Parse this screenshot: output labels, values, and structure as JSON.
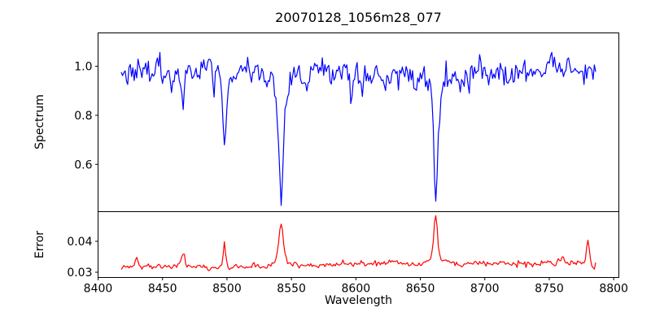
{
  "chart_data": {
    "type": "line",
    "title": "20070128_1056m28_077",
    "xlabel": "Wavelength",
    "background": "#ffffff",
    "grid": false,
    "legend": "none",
    "xlim": [
      8400,
      8804
    ],
    "x_ticks": [
      8400,
      8450,
      8500,
      8550,
      8600,
      8650,
      8700,
      8750,
      8800
    ],
    "x_start": 8418,
    "x_end": 8786,
    "x_step": 1,
    "noise_seed": 20070128,
    "panels": [
      {
        "name": "spectrum",
        "ylabel": "Spectrum",
        "color": "#0000ff",
        "ylim": [
          0.407,
          1.136
        ],
        "y_ticks": [
          0.6,
          0.8,
          1.0
        ],
        "y_tick_labels": [
          "0.6",
          "0.8",
          "1.0"
        ],
        "baseline_start": 0.978,
        "baseline_end": 0.97,
        "noise_sigma": 0.024,
        "features": [
          {
            "x": 8498,
            "amp": -0.24,
            "width": 1.2
          },
          {
            "x": 8498,
            "amp": -0.1,
            "width": 3.2
          },
          {
            "x": 8542,
            "amp": -0.38,
            "width": 1.7
          },
          {
            "x": 8542,
            "amp": -0.13,
            "width": 5.0
          },
          {
            "x": 8662,
            "amp": -0.37,
            "width": 1.5
          },
          {
            "x": 8662,
            "amp": -0.11,
            "width": 4.2
          },
          {
            "x": 8450,
            "amp": -0.05,
            "width": 0.8
          },
          {
            "x": 8466,
            "amp": -0.1,
            "width": 0.9
          },
          {
            "x": 8490,
            "amp": -0.07,
            "width": 0.8
          },
          {
            "x": 8530,
            "amp": -0.06,
            "width": 0.9
          },
          {
            "x": 8596,
            "amp": -0.09,
            "width": 0.8
          },
          {
            "x": 8688,
            "amp": -0.05,
            "width": 0.8
          }
        ],
        "key_points": [
          {
            "x": 8498,
            "y": 0.63
          },
          {
            "x": 8542,
            "y": 0.46
          },
          {
            "x": 8662,
            "y": 0.49
          }
        ]
      },
      {
        "name": "error",
        "ylabel": "Error",
        "color": "#ff0000",
        "ylim": [
          0.0283,
          0.0496
        ],
        "y_ticks": [
          0.03,
          0.04
        ],
        "y_tick_labels": [
          "0.03",
          "0.04"
        ],
        "baseline_start": 0.0317,
        "baseline_end": 0.0331,
        "noise_sigma": 0.00042,
        "features": [
          {
            "x": 8430,
            "amp": 0.004,
            "width": 1.2
          },
          {
            "x": 8466,
            "amp": 0.0038,
            "width": 1.2
          },
          {
            "x": 8498,
            "amp": 0.0085,
            "width": 1.0
          },
          {
            "x": 8542,
            "amp": 0.011,
            "width": 1.6
          },
          {
            "x": 8542,
            "amp": 0.0025,
            "width": 4.0
          },
          {
            "x": 8662,
            "amp": 0.013,
            "width": 1.4
          },
          {
            "x": 8662,
            "amp": 0.0025,
            "width": 4.0
          },
          {
            "x": 8712,
            "amp": 0.0012,
            "width": 1.5
          },
          {
            "x": 8760,
            "amp": 0.0018,
            "width": 2.0
          },
          {
            "x": 8780,
            "amp": 0.007,
            "width": 1.0
          },
          {
            "x": 8784,
            "amp": -0.002,
            "width": 1.2
          }
        ],
        "key_points": [
          {
            "x": 8430,
            "y": 0.036
          },
          {
            "x": 8466,
            "y": 0.036
          },
          {
            "x": 8498,
            "y": 0.041
          },
          {
            "x": 8542,
            "y": 0.046
          },
          {
            "x": 8662,
            "y": 0.048
          },
          {
            "x": 8780,
            "y": 0.04
          }
        ]
      }
    ]
  }
}
